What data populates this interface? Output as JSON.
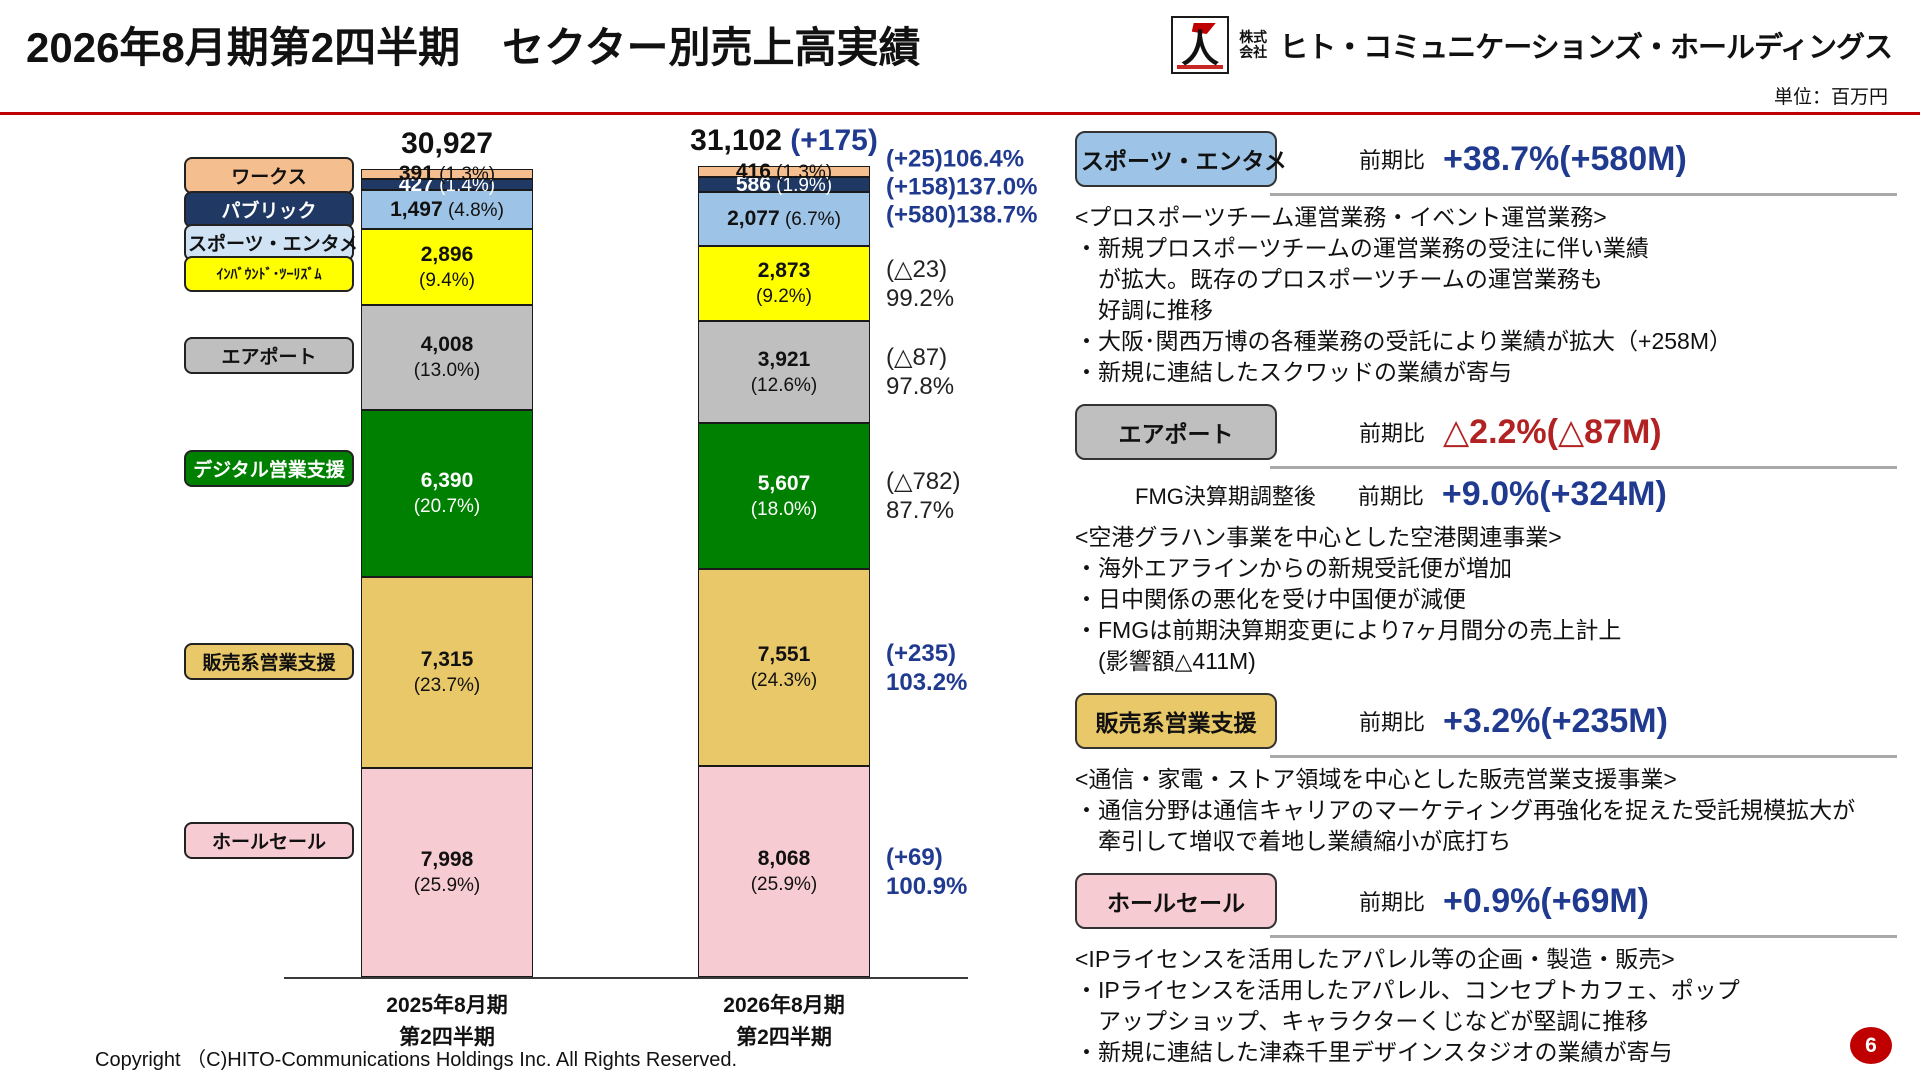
{
  "header": {
    "title": "2026年8月期第2四半期　セクター別売上高実績",
    "company_prefix": "株式会社",
    "company_name": "ヒト・コミュニケーションズ・ホールディングス"
  },
  "meta": {
    "unit_label": "単位：百万円",
    "copyright": "Copyright （C)HITO-Communications Holdings Inc. All Rights Reserved.",
    "page_number": "6"
  },
  "chart_data": {
    "type": "bar",
    "stacked": true,
    "unit": "百万円",
    "categories": [
      "2025年8月期 第2四半期",
      "2026年8月期 第2四半期"
    ],
    "x_labels": [
      {
        "line1": "2025年8月期",
        "line2": "第2四半期"
      },
      {
        "line1": "2026年8月期",
        "line2": "第2四半期"
      }
    ],
    "totals": {
      "prev": "30,927",
      "curr": "31,102",
      "curr_delta": "(+175)"
    },
    "segments": [
      {
        "id": "works",
        "name": "ワークス",
        "fill": "#F5BE8E",
        "legend_fill": "#F5BE8E",
        "text": "#111111",
        "legend_text": "#111111",
        "prev_value": 391,
        "prev_display": "391",
        "prev_pct": "(1.3%)",
        "curr_value": 416,
        "curr_display": "416",
        "curr_pct": "(1.3%)",
        "yoy_delta": "(+25)",
        "yoy_ratio": "106.4%",
        "yoy_single": true,
        "yoy_color": "#203A90",
        "yoy_bold": true
      },
      {
        "id": "public",
        "name": "パブリック",
        "fill": "#1F3864",
        "legend_fill": "#1F3864",
        "text": "#ffffff",
        "legend_text": "#ffffff",
        "prev_value": 427,
        "prev_display": "427",
        "prev_pct": "(1.4%)",
        "curr_value": 586,
        "curr_display": "586",
        "curr_pct": "(1.9%)",
        "yoy_delta": "(+158)",
        "yoy_ratio": "137.0%",
        "yoy_single": true,
        "yoy_color": "#203A90",
        "yoy_bold": true
      },
      {
        "id": "sports-entertainment",
        "name": "スポーツ・エンタメ",
        "fill": "#9DC3E6",
        "legend_fill": "#CFE3F5",
        "text": "#111111",
        "legend_text": "#111111",
        "prev_value": 1497,
        "prev_display": "1,497",
        "prev_pct": "(4.8%)",
        "curr_value": 2077,
        "curr_display": "2,077",
        "curr_pct": "(6.7%)",
        "yoy_delta": "(+580)",
        "yoy_ratio": "138.7%",
        "yoy_single": true,
        "yoy_color": "#203A90",
        "yoy_bold": true
      },
      {
        "id": "inbound-tourism",
        "name": "ｲﾝﾊﾞｳﾝﾄﾞ･ﾂｰﾘｽﾞﾑ",
        "legend_small": true,
        "fill": "#FFFF00",
        "legend_fill": "#FFFF00",
        "text": "#111111",
        "legend_text": "#111111",
        "prev_value": 2896,
        "prev_display": "2,896",
        "prev_pct": "(9.4%)",
        "curr_value": 2873,
        "curr_display": "2,873",
        "curr_pct": "(9.2%)",
        "yoy_delta": "(△23)",
        "yoy_ratio": "99.2%",
        "yoy_single": false,
        "yoy_color": "#222222",
        "yoy_bold": false
      },
      {
        "id": "airport",
        "name": "エアポート",
        "fill": "#BFBFBF",
        "legend_fill": "#BFBFBF",
        "text": "#111111",
        "legend_text": "#111111",
        "prev_value": 4008,
        "prev_display": "4,008",
        "prev_pct": "(13.0%)",
        "curr_value": 3921,
        "curr_display": "3,921",
        "curr_pct": "(12.6%)",
        "yoy_delta": "(△87)",
        "yoy_ratio": "97.8%",
        "yoy_single": false,
        "yoy_color": "#222222",
        "yoy_bold": false
      },
      {
        "id": "digital-sales-support",
        "name": "デジタル営業支援",
        "fill": "#008000",
        "legend_fill": "#008000",
        "text": "#ffffff",
        "legend_text": "#ffffff",
        "prev_value": 6390,
        "prev_display": "6,390",
        "prev_pct": "(20.7%)",
        "curr_value": 5607,
        "curr_display": "5,607",
        "curr_pct": "(18.0%)",
        "yoy_delta": "(△782)",
        "yoy_ratio": "87.7%",
        "yoy_single": false,
        "yoy_color": "#222222",
        "yoy_bold": false
      },
      {
        "id": "retail-sales-support",
        "name": "販売系営業支援",
        "fill": "#E8C868",
        "legend_fill": "#E8C868",
        "text": "#111111",
        "legend_text": "#111111",
        "prev_value": 7315,
        "prev_display": "7,315",
        "prev_pct": "(23.7%)",
        "curr_value": 7551,
        "curr_display": "7,551",
        "curr_pct": "(24.3%)",
        "yoy_delta": "(+235)",
        "yoy_ratio": "103.2%",
        "yoy_single": false,
        "yoy_color": "#203A90",
        "yoy_bold": true
      },
      {
        "id": "wholesale",
        "name": "ホールセール",
        "fill": "#F6CBD1",
        "legend_fill": "#F6CBD1",
        "text": "#111111",
        "legend_text": "#111111",
        "prev_value": 7998,
        "prev_display": "7,998",
        "prev_pct": "(25.9%)",
        "curr_value": 8068,
        "curr_display": "8,068",
        "curr_pct": "(25.9%)",
        "yoy_delta": "(+69)",
        "yoy_ratio": "100.9%",
        "yoy_single": false,
        "yoy_color": "#203A90",
        "yoy_bold": true
      }
    ]
  },
  "sections": [
    {
      "id": "sports-entertainment",
      "badge": "スポーツ・エンタメ",
      "badge_fill": "#9DC3E6",
      "compare_label": "前期比",
      "value": "+38.7%(+580M)",
      "value_color": "#203A90",
      "body_lines": [
        "<プロスポーツチーム運営業務・イベント運営業務>",
        "・新規プロスポーツチームの運営業務の受注に伴い業績",
        "　が拡大。既存のプロスポーツチームの運営業務も",
        "　好調に推移",
        "・大阪･関西万博の各種業務の受託により業績が拡大（+258M）",
        "・新規に連結したスクワッドの業績が寄与"
      ]
    },
    {
      "id": "airport",
      "badge": "エアポート",
      "badge_fill": "#BFBFBF",
      "compare_label": "前期比",
      "value": "△2.2%(△87M)",
      "value_color": "#B22222",
      "extra_row": {
        "prefix": "FMG決算期調整後",
        "compare_label": "前期比",
        "value": "+9.0%(+324M)",
        "value_color": "#203A90"
      },
      "body_lines": [
        "<空港グラハン事業を中心とした空港関連事業>",
        "・海外エアラインからの新規受託便が増加",
        "・日中関係の悪化を受け中国便が減便",
        "・FMGは前期決算期変更により7ヶ月間分の売上計上",
        "　(影響額△411M)"
      ]
    },
    {
      "id": "retail-sales-support",
      "badge": "販売系営業支援",
      "badge_fill": "#E8C868",
      "compare_label": "前期比",
      "value": "+3.2%(+235M)",
      "value_color": "#203A90",
      "body_lines": [
        "<通信・家電・ストア領域を中心とした販売営業支援事業>",
        "・通信分野は通信キャリアのマーケティング再強化を捉えた受託規模拡大が",
        "　牽引して増収で着地し業績縮小が底打ち"
      ]
    },
    {
      "id": "wholesale",
      "badge": "ホールセール",
      "badge_fill": "#F6CBD1",
      "compare_label": "前期比",
      "value": "+0.9%(+69M)",
      "value_color": "#203A90",
      "body_lines": [
        "<IPライセンスを活用したアパレル等の企画・製造・販売>",
        "・IPライセンスを活用したアパレル、コンセプトカフェ、ポップ",
        "　アップショップ、キャラクターくじなどが堅調に推移",
        "・新規に連結した津森千里デザインスタジオの業績が寄与"
      ]
    }
  ]
}
